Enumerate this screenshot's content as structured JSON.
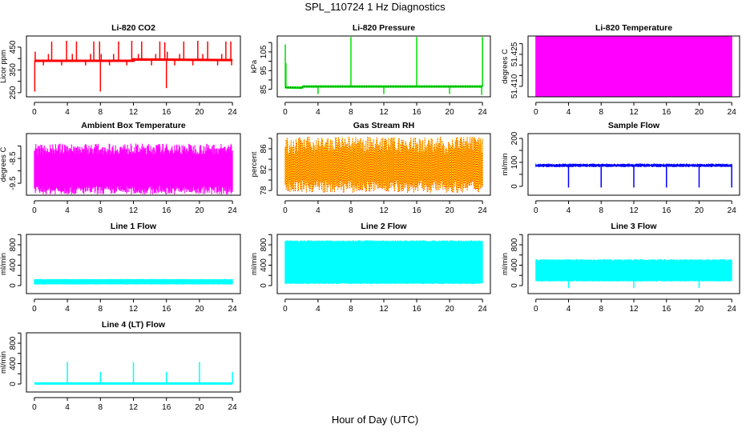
{
  "title": "SPL_110724  1 Hz Diagnostics",
  "xlabel": "Hour of Day (UTC)",
  "chart_data": [
    {
      "type": "line",
      "title": "Li-820 CO2",
      "ylabel": "Licor ppm",
      "color": "#ff0000",
      "xlim": [
        -0.96,
        24.96
      ],
      "ylim": [
        232,
        499
      ],
      "xticks": [
        0,
        4,
        8,
        12,
        16,
        20,
        24
      ],
      "yticks": [
        {
          "v": 250,
          "label": "250"
        },
        {
          "v": 300,
          "label": ""
        },
        {
          "v": 350,
          "label": "350"
        },
        {
          "v": 400,
          "label": ""
        },
        {
          "v": 450,
          "label": "450"
        }
      ],
      "baseline": [
        [
          0,
          390
        ],
        [
          12,
          390
        ],
        [
          12,
          396
        ],
        [
          24,
          393
        ]
      ],
      "spikes": [
        [
          0.05,
          255
        ],
        [
          0.1,
          430
        ],
        [
          1.1,
          370
        ],
        [
          1.7,
          420
        ],
        [
          2.1,
          475
        ],
        [
          3.3,
          370
        ],
        [
          3.9,
          478
        ],
        [
          4.6,
          420
        ],
        [
          5.1,
          475
        ],
        [
          6.2,
          370
        ],
        [
          6.8,
          420
        ],
        [
          7.2,
          475
        ],
        [
          7.9,
          475
        ],
        [
          8.0,
          255
        ],
        [
          8.1,
          420
        ],
        [
          9.1,
          370
        ],
        [
          9.6,
          420
        ],
        [
          10.2,
          475
        ],
        [
          11.2,
          370
        ],
        [
          11.8,
          478
        ],
        [
          12.6,
          420
        ],
        [
          13.0,
          475
        ],
        [
          14.2,
          370
        ],
        [
          14.7,
          420
        ],
        [
          15.2,
          475
        ],
        [
          15.8,
          472
        ],
        [
          16.0,
          270
        ],
        [
          16.1,
          430
        ],
        [
          17.0,
          370
        ],
        [
          17.6,
          420
        ],
        [
          18.1,
          475
        ],
        [
          19.2,
          370
        ],
        [
          19.8,
          478
        ],
        [
          20.4,
          420
        ],
        [
          21.0,
          475
        ],
        [
          22.2,
          370
        ],
        [
          22.7,
          420
        ],
        [
          23.2,
          475
        ],
        [
          23.8,
          475
        ],
        [
          23.9,
          370
        ]
      ]
    },
    {
      "type": "line",
      "title": "Li-820 Pressure",
      "ylabel": "kPa",
      "color": "#00dd00",
      "xlim": [
        -0.96,
        24.96
      ],
      "ylim": [
        81,
        113.5
      ],
      "xticks": [
        0,
        4,
        8,
        12,
        16,
        20,
        24
      ],
      "yticks": [
        {
          "v": 85,
          "label": "85"
        },
        {
          "v": 90,
          "label": ""
        },
        {
          "v": 95,
          "label": "95"
        },
        {
          "v": 100,
          "label": ""
        },
        {
          "v": 105,
          "label": "105"
        },
        {
          "v": 110,
          "label": ""
        }
      ],
      "baseline": [
        [
          0,
          86
        ],
        [
          2,
          85.8
        ],
        [
          2.2,
          86.5
        ],
        [
          24,
          86.5
        ]
      ],
      "spikes": [
        [
          0.02,
          109
        ],
        [
          0.1,
          99
        ],
        [
          4,
          82.5
        ],
        [
          8,
          113
        ],
        [
          12,
          82.5
        ],
        [
          16,
          113
        ],
        [
          20,
          82.5
        ],
        [
          24,
          113
        ],
        [
          23.9,
          82
        ]
      ]
    },
    {
      "type": "area",
      "title": "Li-820 Temperature",
      "ylabel": "degrees C",
      "color": "#ff00ff",
      "xlim": [
        -0.96,
        24.96
      ],
      "ylim": [
        51.4051,
        51.4336
      ],
      "xticks": [
        0,
        4,
        8,
        12,
        16,
        20,
        24
      ],
      "yticks": [
        {
          "v": 51.41,
          "label": "51.410"
        },
        {
          "v": 51.415,
          "label": ""
        },
        {
          "v": 51.42,
          "label": ""
        },
        {
          "v": 51.425,
          "label": "51.425"
        },
        {
          "v": 51.43,
          "label": ""
        }
      ],
      "band": {
        "lo": [
          51.4053,
          51.4053
        ],
        "hi": [
          51.4333,
          51.4333
        ]
      }
    },
    {
      "type": "line",
      "title": "Ambient Box Temperature",
      "ylabel": "degrees C",
      "color": "#ff00ff",
      "xlim": [
        -0.96,
        24.96
      ],
      "ylim": [
        -9.98,
        -7.5
      ],
      "xticks": [
        0,
        4,
        8,
        12,
        16,
        20,
        24
      ],
      "yticks": [
        {
          "v": -9.5,
          "label": "-9.5"
        },
        {
          "v": -9,
          "label": ""
        },
        {
          "v": -8.5,
          "label": "-8.5"
        },
        {
          "v": -8,
          "label": ""
        }
      ],
      "band": {
        "lo": [
          -9.95,
          -9.6
        ],
        "hi": [
          -8.35,
          -7.9
        ]
      }
    },
    {
      "type": "line",
      "title": "Gas Stream RH",
      "ylabel": "percent",
      "color": "#ffcc00",
      "color2": "#ff0000",
      "xlim": [
        -0.96,
        24.96
      ],
      "ylim": [
        77.1,
        88.9
      ],
      "xticks": [
        0,
        4,
        8,
        12,
        16,
        20,
        24
      ],
      "yticks": [
        {
          "v": 78,
          "label": "78"
        },
        {
          "v": 80,
          "label": ""
        },
        {
          "v": 82,
          "label": "82"
        },
        {
          "v": 84,
          "label": ""
        },
        {
          "v": 86,
          "label": "86"
        },
        {
          "v": 88,
          "label": ""
        }
      ],
      "band": {
        "lo": [
          77.6,
          80.2
        ],
        "hi": [
          85,
          88.3
        ]
      }
    },
    {
      "type": "line",
      "title": "Sample Flow",
      "ylabel": "ml/min",
      "color": "#0000ff",
      "xlim": [
        -0.96,
        24.96
      ],
      "ylim": [
        -37,
        220
      ],
      "xticks": [
        0,
        4,
        8,
        12,
        16,
        20,
        24
      ],
      "yticks": [
        {
          "v": 0,
          "label": "0"
        },
        {
          "v": 50,
          "label": ""
        },
        {
          "v": 100,
          "label": "100"
        },
        {
          "v": 150,
          "label": ""
        },
        {
          "v": 200,
          "label": "200"
        }
      ],
      "band": {
        "lo": [
          80,
          84
        ],
        "hi": [
          90,
          95
        ]
      },
      "spikes": [
        [
          4,
          -5
        ],
        [
          8,
          -5
        ],
        [
          12,
          -5
        ],
        [
          16,
          -5
        ],
        [
          20,
          -5
        ],
        [
          24,
          -5
        ]
      ]
    },
    {
      "type": "line",
      "title": "Line 1 Flow",
      "ylabel": "ml/min",
      "color": "#00ffff",
      "xlim": [
        -0.96,
        24.96
      ],
      "ylim": [
        -157,
        1004
      ],
      "xticks": [
        0,
        4,
        8,
        12,
        16,
        20,
        24
      ],
      "yticks": [
        {
          "v": 0,
          "label": "0"
        },
        {
          "v": 200,
          "label": ""
        },
        {
          "v": 400,
          "label": "400"
        },
        {
          "v": 600,
          "label": ""
        },
        {
          "v": 800,
          "label": "800"
        },
        {
          "v": 1000,
          "label": ""
        }
      ],
      "band": {
        "lo": [
          20,
          30
        ],
        "hi": [
          120,
          130
        ]
      }
    },
    {
      "type": "line",
      "title": "Line 2 Flow",
      "ylabel": "ml/min",
      "color": "#00ffff",
      "xlim": [
        -0.96,
        24.96
      ],
      "ylim": [
        -157,
        1004
      ],
      "xticks": [
        0,
        4,
        8,
        12,
        16,
        20,
        24
      ],
      "yticks": [
        {
          "v": 0,
          "label": "0"
        },
        {
          "v": 200,
          "label": ""
        },
        {
          "v": 400,
          "label": "400"
        },
        {
          "v": 600,
          "label": ""
        },
        {
          "v": 800,
          "label": "800"
        },
        {
          "v": 1000,
          "label": ""
        }
      ],
      "band": {
        "lo": [
          30,
          50
        ],
        "hi": [
          860,
          890
        ]
      }
    },
    {
      "type": "line",
      "title": "Line 3 Flow",
      "ylabel": "ml/min",
      "color": "#00ffff",
      "xlim": [
        -0.96,
        24.96
      ],
      "ylim": [
        -157,
        1004
      ],
      "xticks": [
        0,
        4,
        8,
        12,
        16,
        20,
        24
      ],
      "yticks": [
        {
          "v": 0,
          "label": "0"
        },
        {
          "v": 200,
          "label": ""
        },
        {
          "v": 400,
          "label": "400"
        },
        {
          "v": 600,
          "label": ""
        },
        {
          "v": 800,
          "label": "800"
        },
        {
          "v": 1000,
          "label": ""
        }
      ],
      "band": {
        "lo": [
          80,
          95
        ],
        "hi": [
          490,
          520
        ]
      },
      "spikes": [
        [
          4,
          -50
        ],
        [
          12,
          -50
        ],
        [
          20,
          -50
        ]
      ]
    },
    {
      "type": "line",
      "title": "Line 4 (LT) Flow",
      "ylabel": "ml/min",
      "color": "#00ffff",
      "xlim": [
        -0.96,
        24.96
      ],
      "ylim": [
        -157,
        1004
      ],
      "xticks": [
        0,
        4,
        8,
        12,
        16,
        20,
        24
      ],
      "yticks": [
        {
          "v": 0,
          "label": "0"
        },
        {
          "v": 200,
          "label": ""
        },
        {
          "v": 400,
          "label": "400"
        },
        {
          "v": 600,
          "label": ""
        },
        {
          "v": 800,
          "label": "800"
        },
        {
          "v": 1000,
          "label": ""
        }
      ],
      "baseline": [
        [
          0,
          10
        ],
        [
          24,
          10
        ]
      ],
      "spikes": [
        [
          4,
          430
        ],
        [
          8,
          240
        ],
        [
          12,
          430
        ],
        [
          16,
          240
        ],
        [
          20,
          430
        ],
        [
          24,
          240
        ]
      ]
    }
  ]
}
